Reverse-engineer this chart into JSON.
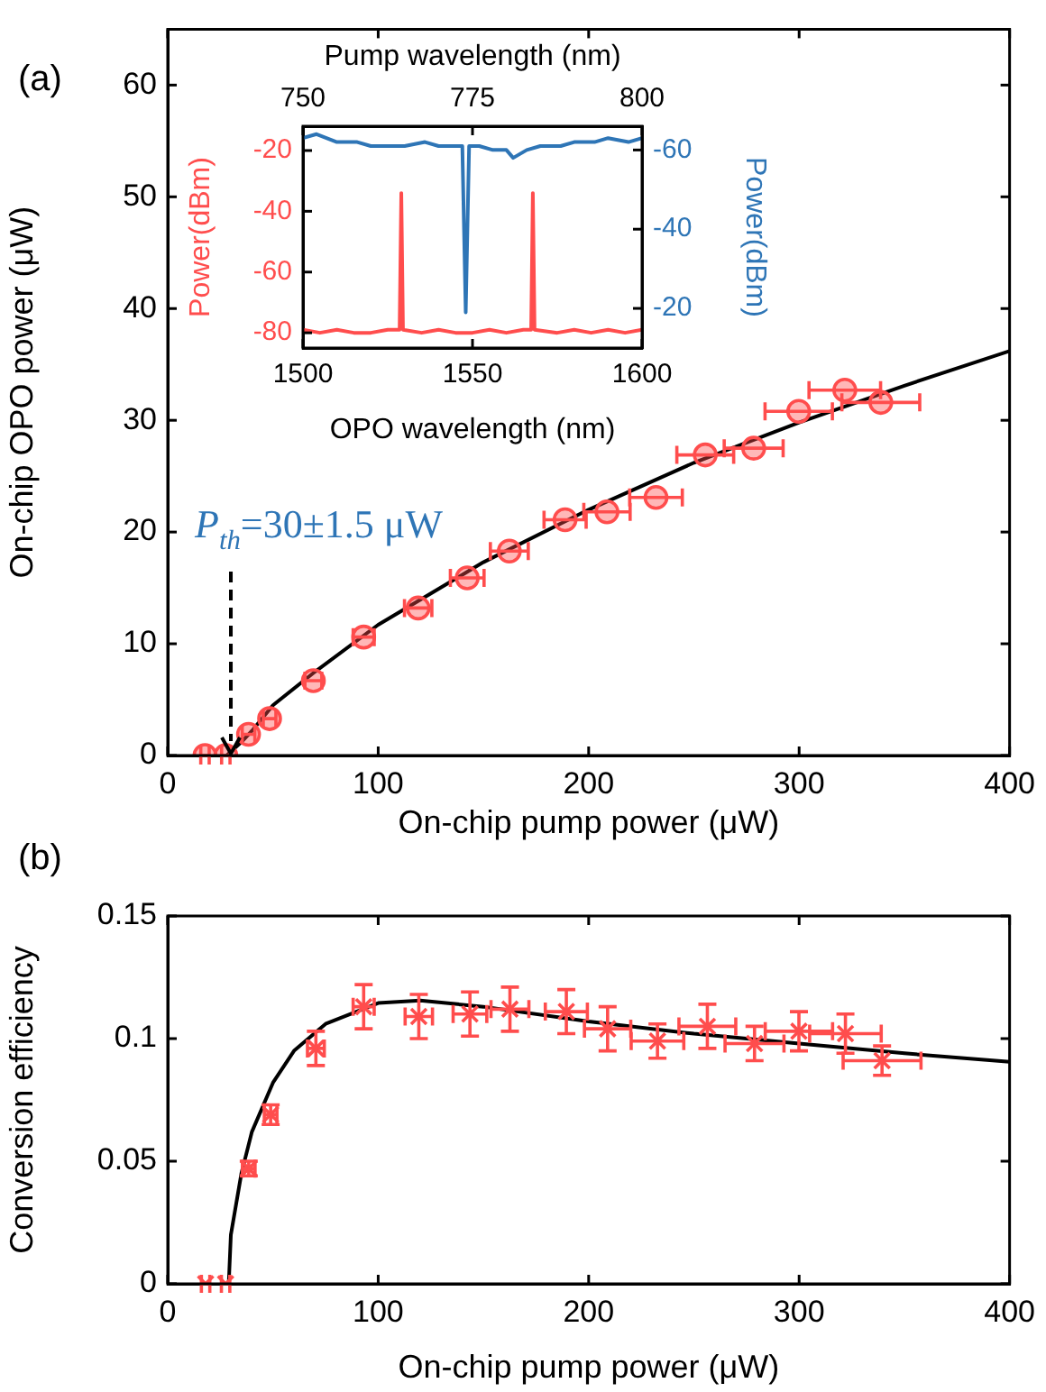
{
  "chart_data": [
    {
      "type": "scatter",
      "annotations": [
        "(a)",
        {
          "text": "P$_{th}$=30±1.5 μW",
          "x": 30,
          "y": 0
        }
      ],
      "xlabel": "On-chip pump power (μW)",
      "ylabel": "On-chip OPO power (μW)",
      "xlim": [
        0,
        400
      ],
      "xticks": [
        0,
        100,
        200,
        300,
        400
      ],
      "ylim": [
        0,
        65
      ],
      "yticks": [
        0,
        10,
        20,
        30,
        40,
        50,
        60
      ],
      "grid": false,
      "legend": false,
      "series": [
        {
          "color": "#ff4d4d",
          "marker": "circle",
          "x": [
            17.7,
            27.6,
            38.4,
            48.4,
            69.2,
            93.1,
            119,
            142.3,
            162.3,
            188.8,
            208.7,
            232,
            255.4,
            278.4,
            299.8,
            321.7,
            338.8
          ],
          "values": [
            0,
            0,
            1.9,
            3.3,
            6.7,
            10.6,
            13.2,
            15.9,
            18.3,
            21.1,
            21.8,
            23.1,
            26.9,
            27.5,
            30.8,
            32.7,
            31.6
          ],
          "xerrors": [
            2,
            2,
            3,
            3,
            4,
            5,
            6.5,
            8,
            9,
            10,
            11,
            12.5,
            13.5,
            14,
            16,
            17,
            18.5
          ]
        },
        {
          "type": "line",
          "color": "#000000",
          "x": [
            28,
            35,
            40,
            50,
            70,
            100,
            150,
            200,
            250,
            300,
            350,
            400
          ],
          "values": [
            0,
            1.2,
            2.2,
            4.5,
            7.5,
            11.7,
            17.3,
            22,
            26.2,
            29.8,
            33.1,
            36.2
          ]
        }
      ]
    },
    {
      "type": "line",
      "xlabel": "OPO wavelength (nm)",
      "x2label": "Pump wavelength (nm)",
      "ylabel": "Power(dBm)",
      "y2label": "Power(dBm)",
      "xlim": [
        1500,
        1600
      ],
      "xticks": [
        1500,
        1550,
        1600
      ],
      "x2lim": [
        750,
        800
      ],
      "x2ticks": [
        750,
        775,
        800
      ],
      "ylim": [
        -85,
        -12
      ],
      "yticks": [
        -80,
        -60,
        -40,
        -20
      ],
      "y2lim": [
        -10,
        -66
      ],
      "y2ticks": [
        -60,
        -40,
        -20
      ],
      "grid": false,
      "legend": false,
      "series": [
        {
          "color": "#ff4d4d",
          "x": [
            1500,
            1505,
            1510,
            1515,
            1520,
            1525,
            1528.5,
            1529,
            1529.5,
            1535,
            1540,
            1545,
            1550,
            1555,
            1560,
            1565,
            1567.3,
            1567.8,
            1568.3,
            1575,
            1580,
            1585,
            1590,
            1595,
            1600
          ],
          "values": [
            -79,
            -80,
            -79,
            -80,
            -80,
            -79,
            -79,
            -34,
            -79,
            -80,
            -79,
            -80,
            -80,
            -79,
            -80,
            -79,
            -79,
            -34,
            -79,
            -80,
            -79,
            -80,
            -79,
            -80,
            -79
          ]
        },
        {
          "color": "#2e75b6",
          "axis": "y2",
          "x": [
            1500,
            1504,
            1510,
            1516,
            1520,
            1526,
            1530,
            1536,
            1540,
            1544,
            1547,
            1548,
            1549,
            1552,
            1556,
            1560,
            1562,
            1566,
            1570,
            1576,
            1580,
            1586,
            1590,
            1596,
            1600
          ],
          "values": [
            -63,
            -64,
            -62,
            -62,
            -61,
            -61,
            -61,
            -62,
            -61,
            -61,
            -61,
            -19,
            -61,
            -61,
            -60,
            -60,
            -58,
            -60,
            -61,
            -61,
            -62,
            -62,
            -63,
            -62,
            -63
          ]
        }
      ]
    },
    {
      "type": "scatter",
      "annotations": [
        "(b)"
      ],
      "xlabel": "On-chip pump power (μW)",
      "ylabel": "Conversion efficiency",
      "xlim": [
        0,
        400
      ],
      "xticks": [
        0,
        100,
        200,
        300,
        400
      ],
      "ylim": [
        0,
        0.15
      ],
      "yticks": [
        0,
        0.05,
        0.1,
        0.15
      ],
      "grid": false,
      "legend": false,
      "series": [
        {
          "color": "#ff4d4d",
          "marker": "cross",
          "x": [
            18,
            27.5,
            38.5,
            48.9,
            70.4,
            93.1,
            119.3,
            143.6,
            162.6,
            189.4,
            209,
            232.7,
            256.4,
            278.8,
            299.9,
            322,
            339.4
          ],
          "values": [
            0,
            0,
            0.047,
            0.069,
            0.096,
            0.113,
            0.109,
            0.11,
            0.112,
            0.111,
            0.104,
            0.099,
            0.105,
            0.098,
            0.103,
            0.102,
            0.091
          ],
          "errors": [
            null,
            null,
            0.003,
            0.004,
            0.007,
            0.009,
            0.009,
            0.009,
            0.009,
            0.009,
            0.009,
            0.007,
            0.009,
            0.007,
            0.008,
            0.008,
            0.006
          ],
          "xerrors": [
            2,
            2,
            3,
            3,
            4,
            5,
            6.5,
            8,
            9,
            10,
            11,
            12.5,
            13.5,
            14,
            16,
            17,
            18.5
          ]
        },
        {
          "type": "line",
          "color": "#000000",
          "x": [
            29,
            30,
            35,
            40,
            50,
            60,
            75,
            100,
            120,
            150,
            200,
            250,
            300,
            350,
            400
          ],
          "values": [
            0,
            0.02,
            0.045,
            0.062,
            0.082,
            0.095,
            0.106,
            0.1145,
            0.1155,
            0.113,
            0.107,
            0.102,
            0.098,
            0.094,
            0.0905
          ]
        }
      ]
    }
  ]
}
